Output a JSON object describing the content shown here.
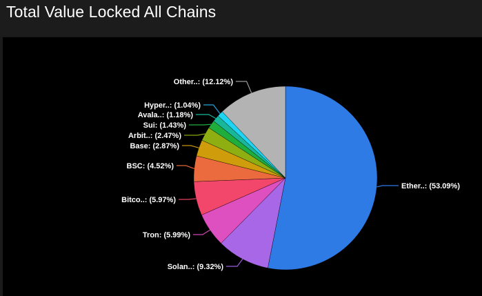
{
  "title": "Total Value Locked All Chains",
  "chart_data": {
    "type": "pie",
    "title": "Total Value Locked All Chains",
    "slices": [
      {
        "label": "Ether..: (53.09%)",
        "name": "Ether..",
        "value": 53.09,
        "color": "#2f7be5",
        "line": "#2f7be5"
      },
      {
        "label": "Solan..: (9.32%)",
        "name": "Solan..",
        "value": 9.32,
        "color": "#a867e6",
        "line": "#9d5ad9"
      },
      {
        "label": "Tron: (5.99%)",
        "name": "Tron",
        "value": 5.99,
        "color": "#de4fc0",
        "line": "#cf47b3"
      },
      {
        "label": "Bitco..: (5.97%)",
        "name": "Bitco..",
        "value": 5.97,
        "color": "#f2476b",
        "line": "#e5405f"
      },
      {
        "label": "BSC: (4.52%)",
        "name": "BSC",
        "value": 4.52,
        "color": "#ec6b3e",
        "line": "#e06537"
      },
      {
        "label": "Base: (2.87%)",
        "name": "Base",
        "value": 2.87,
        "color": "#cf9d0b",
        "line": "#c8960a"
      },
      {
        "label": "Arbit..: (2.47%)",
        "name": "Arbit..",
        "value": 2.47,
        "color": "#8fae12",
        "line": "#86a50f"
      },
      {
        "label": "Sui: (1.43%)",
        "name": "Sui",
        "value": 1.43,
        "color": "#1fad3c",
        "line": "#22b041"
      },
      {
        "label": "Avala..: (1.18%)",
        "name": "Avala..",
        "value": 1.18,
        "color": "#19b79a",
        "line": "#19b79a"
      },
      {
        "label": "Hyper..: (1.04%)",
        "name": "Hyper..",
        "value": 1.04,
        "color": "#1fd3f2",
        "line": "#1fa7e0"
      },
      {
        "label": "Other..: (12.12%)",
        "name": "Other..",
        "value": 12.12,
        "color": "#b3b3b3",
        "line": "#9a9a9a"
      }
    ]
  }
}
